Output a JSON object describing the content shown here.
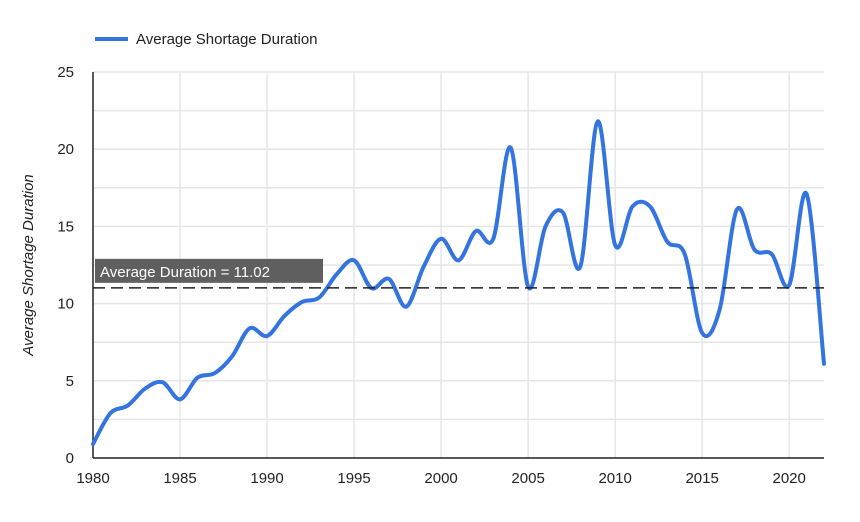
{
  "chart_data": {
    "type": "line",
    "title": "",
    "xlabel": "",
    "ylabel": "Average Shortage Duration",
    "xlim": [
      1980,
      2022
    ],
    "ylim": [
      0,
      25
    ],
    "x_ticks": [
      1980,
      1985,
      1990,
      1995,
      2000,
      2005,
      2010,
      2015,
      2020
    ],
    "y_ticks": [
      0,
      5,
      10,
      15,
      20,
      25
    ],
    "grid": true,
    "legend": {
      "position": "top-left",
      "entries": [
        "Average Shortage Duration"
      ]
    },
    "colors": {
      "series": "#3474e0",
      "reference_line": "#222222",
      "annotation_bg": "#5f5f5f"
    },
    "series": [
      {
        "name": "Average Shortage Duration",
        "x": [
          1980,
          1981,
          1982,
          1983,
          1984,
          1985,
          1986,
          1987,
          1988,
          1989,
          1990,
          1991,
          1992,
          1993,
          1994,
          1995,
          1996,
          1997,
          1998,
          1999,
          2000,
          2001,
          2002,
          2003,
          2004,
          2005,
          2006,
          2007,
          2008,
          2009,
          2010,
          2011,
          2012,
          2013,
          2014,
          2015,
          2016,
          2017,
          2018,
          2019,
          2020,
          2021,
          2022
        ],
        "values": [
          0.9,
          2.9,
          3.4,
          4.5,
          4.9,
          3.8,
          5.2,
          5.5,
          6.6,
          8.4,
          7.9,
          9.2,
          10.1,
          10.4,
          11.9,
          12.8,
          11.0,
          11.6,
          9.8,
          12.4,
          14.2,
          12.8,
          14.7,
          14.2,
          20.1,
          11.1,
          15.0,
          15.9,
          12.4,
          21.8,
          13.8,
          16.3,
          16.3,
          14.0,
          13.2,
          8.1,
          9.6,
          16.1,
          13.5,
          13.2,
          11.2,
          17.1,
          6.1
        ]
      }
    ],
    "annotations": [
      {
        "type": "hline",
        "y": 11.02,
        "style": "dashed",
        "label": "Average Duration = 11.02"
      }
    ]
  }
}
